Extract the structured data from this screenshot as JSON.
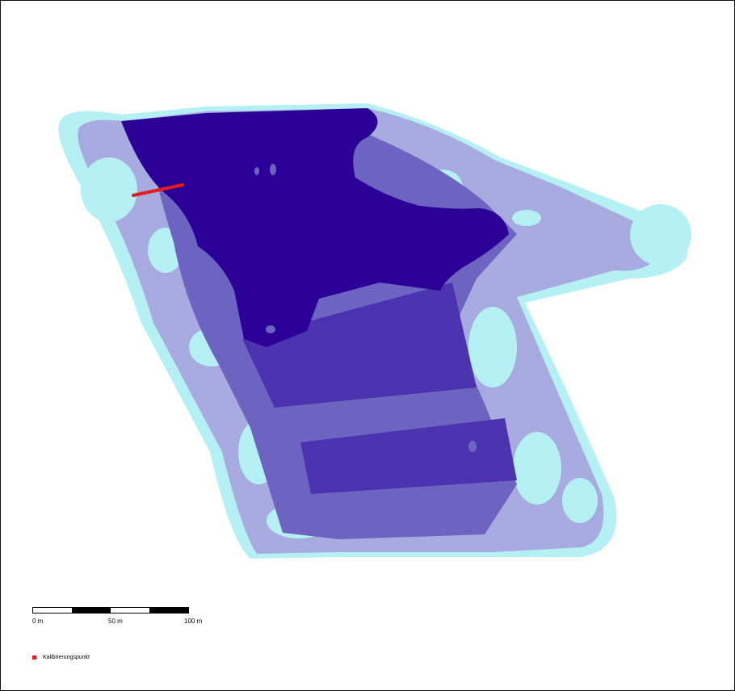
{
  "map": {
    "colors": {
      "level_1_darkest": "#2a0096",
      "level_2": "#4b33b0",
      "level_3": "#6d64c2",
      "level_4": "#a8abe0",
      "level_5_lightest": "#b4f0f4",
      "calibration_marker": "#e41a1c"
    }
  },
  "scalebar": {
    "label_start": "0 m",
    "label_mid": "50 m",
    "label_end": "100 m"
  },
  "legend": {
    "items": [
      {
        "label": "Kalibrierungspunkt",
        "color": "#e41a1c"
      }
    ]
  }
}
